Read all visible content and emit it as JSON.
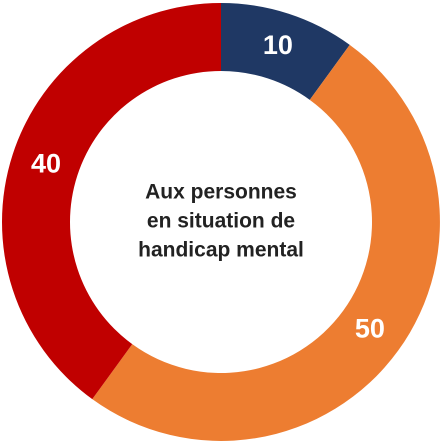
{
  "chart_data": {
    "type": "donut",
    "title": [
      "Aux personnes",
      "en situation de",
      "handicap mental"
    ],
    "values": [
      10,
      50,
      40
    ],
    "colors": [
      "#1f3864",
      "#ed7d31",
      "#c00000"
    ],
    "start_angle": 0,
    "direction": "clockwise"
  }
}
